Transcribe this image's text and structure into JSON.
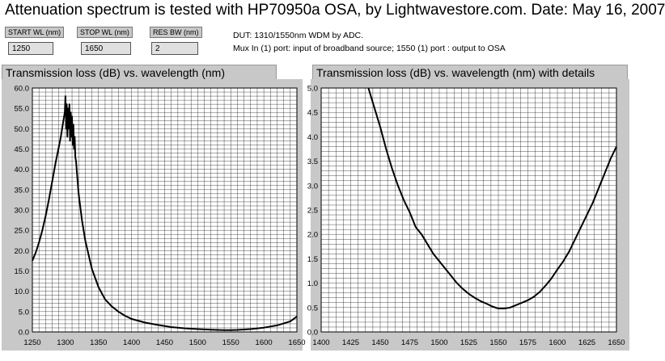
{
  "title": "Attenuation spectrum is tested with HP70950a OSA, by Lightwavestore.com. Date: May 16, 2007",
  "controls": {
    "start_wl": {
      "label": "START WL (nm)",
      "value": "1250"
    },
    "stop_wl": {
      "label": "STOP WL (nm)",
      "value": "1650"
    },
    "res_bw": {
      "label": "RES BW (nm)",
      "value": "2"
    }
  },
  "description": {
    "line1": "DUT:  1310/1550nm WDM by ADC.",
    "line2": "Mux In (1) port: input of broadband source;  1550 (1) port   : output to OSA"
  },
  "colors": {
    "panel_bg": "#c8c8c8",
    "plot_line": "#000000",
    "grid": "#000000"
  },
  "chart_data": [
    {
      "type": "line",
      "title": "Transmission loss (dB) vs. wavelength (nm)",
      "xlim": [
        1250,
        1650
      ],
      "ylim": [
        0,
        60
      ],
      "x_ticks": [
        "1250",
        "1300",
        "1350",
        "1400",
        "1450",
        "1500",
        "1550",
        "1600",
        "1650"
      ],
      "y_ticks": [
        "0.0",
        "5.0",
        "10.0",
        "15.0",
        "20.0",
        "25.0",
        "30.0",
        "35.0",
        "40.0",
        "45.0",
        "50.0",
        "55.0",
        "60.0"
      ],
      "grid": true,
      "x": [
        1250,
        1255,
        1260,
        1265,
        1270,
        1275,
        1280,
        1285,
        1290,
        1293,
        1295,
        1297,
        1299,
        1300,
        1301,
        1302,
        1303,
        1304,
        1305,
        1306,
        1307,
        1308,
        1309,
        1310,
        1311,
        1312,
        1313,
        1314,
        1315,
        1316,
        1318,
        1320,
        1325,
        1330,
        1340,
        1350,
        1360,
        1370,
        1380,
        1390,
        1400,
        1420,
        1440,
        1460,
        1480,
        1500,
        1520,
        1540,
        1550,
        1560,
        1580,
        1600,
        1620,
        1640,
        1650
      ],
      "y": [
        17.5,
        19.5,
        22,
        25,
        28.5,
        32.5,
        37,
        41.5,
        45.5,
        48,
        50,
        52,
        54,
        58,
        50,
        56,
        48,
        55,
        50,
        56,
        47,
        54,
        48,
        53,
        46,
        51,
        45,
        48,
        43,
        42,
        38,
        34,
        27.5,
        22.5,
        15.5,
        11,
        8,
        6.3,
        5,
        4,
        3.2,
        2.3,
        1.7,
        1.2,
        0.9,
        0.7,
        0.55,
        0.45,
        0.45,
        0.5,
        0.7,
        1.05,
        1.6,
        2.6,
        3.8
      ]
    },
    {
      "type": "line",
      "title": "Transmission loss (dB) vs. wavelength (nm) with details",
      "xlim": [
        1400,
        1650
      ],
      "ylim": [
        0,
        5
      ],
      "x_ticks": [
        "1400",
        "1425",
        "1450",
        "1475",
        "1500",
        "1525",
        "1550",
        "1575",
        "1600",
        "1625",
        "1650"
      ],
      "y_ticks": [
        "0.0",
        "0.5",
        "1.0",
        "1.5",
        "2.0",
        "2.5",
        "3.0",
        "3.5",
        "4.0",
        "4.5",
        "5.0"
      ],
      "grid": true,
      "x": [
        1440,
        1445,
        1450,
        1455,
        1460,
        1465,
        1470,
        1475,
        1480,
        1485,
        1490,
        1495,
        1500,
        1505,
        1510,
        1515,
        1520,
        1525,
        1530,
        1535,
        1540,
        1545,
        1550,
        1555,
        1560,
        1565,
        1570,
        1575,
        1580,
        1585,
        1590,
        1595,
        1600,
        1605,
        1610,
        1615,
        1620,
        1625,
        1630,
        1635,
        1640,
        1645,
        1650
      ],
      "y": [
        5.0,
        4.6,
        4.2,
        3.75,
        3.35,
        3.0,
        2.7,
        2.45,
        2.15,
        2.0,
        1.8,
        1.6,
        1.45,
        1.3,
        1.15,
        1.0,
        0.88,
        0.78,
        0.7,
        0.63,
        0.58,
        0.52,
        0.48,
        0.48,
        0.5,
        0.55,
        0.6,
        0.65,
        0.72,
        0.82,
        0.95,
        1.1,
        1.28,
        1.45,
        1.65,
        1.9,
        2.15,
        2.4,
        2.65,
        2.95,
        3.25,
        3.55,
        3.8
      ]
    }
  ]
}
